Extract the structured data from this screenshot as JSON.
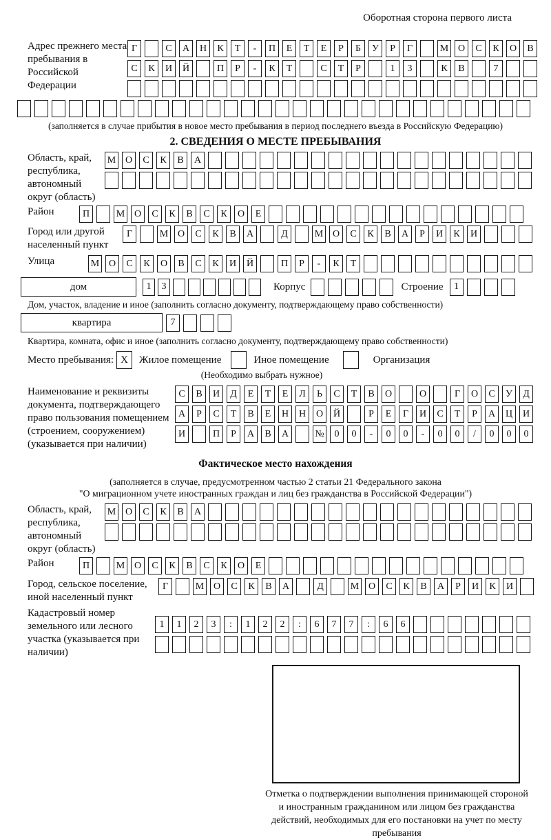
{
  "header_note": "Оборотная сторона первого листа",
  "prev_address": {
    "label": "Адрес прежнего места пребывания в Российской Федерации",
    "row1": {
      "count": 24,
      "value": "Г САНКТ-ПЕТЕРБУРГ МОСКОВ"
    },
    "row2": {
      "count": 24,
      "value": "СКИЙ ПР-КТ СТР 13 КВ 7"
    },
    "row3": {
      "count": 24,
      "value": ""
    },
    "row4": {
      "count": 30,
      "value": ""
    },
    "caption": "(заполняется в случае прибытия в новое место пребывания в период последнего въезда в Российскую Федерацию)"
  },
  "section2": {
    "title": "2. СВЕДЕНИЯ О МЕСТЕ ПРЕБЫВАНИЯ",
    "region": {
      "label": "Область, край, республика, автономный округ (область)",
      "row1": {
        "count": 25,
        "value": "МОСКВА"
      },
      "row2": {
        "count": 25,
        "value": ""
      }
    },
    "district": {
      "label": "Район",
      "row": {
        "count": 26,
        "value": "П МОСКВСКОЕ"
      }
    },
    "city": {
      "label": "Город или другой населенный пункт",
      "row": {
        "count": 24,
        "value": "Г МОСКВА Д МОСКВАРИКИ"
      }
    },
    "street": {
      "label": "Улица",
      "row": {
        "count": 26,
        "value": "МОСКОВСКИЙ ПР-КТ"
      }
    },
    "house": {
      "box_label": "дом",
      "cells": {
        "count": 8,
        "value": "13"
      },
      "korpus_label": "Корпус",
      "korpus_cells": {
        "count": 5,
        "value": ""
      },
      "stroenie_label": "Строение",
      "stroenie_cells": {
        "count": 4,
        "value": "1"
      }
    },
    "house_caption": "Дом, участок, владение и иное (заполнить согласно документу, подтверждающему право собственности)",
    "apartment": {
      "box_label": "квартира",
      "cells": {
        "count": 4,
        "value": "7"
      }
    },
    "apartment_caption": "Квартира, комната, офис и иное (заполнить согласно документу, подтверждающему право собственности)",
    "stay": {
      "label": "Место пребывания:",
      "opt1": {
        "label": "Жилое помещение",
        "mark": "X"
      },
      "opt2": {
        "label": "Иное помещение",
        "mark": ""
      },
      "opt3": {
        "label": "Организация",
        "mark": ""
      },
      "note": "(Необходимо выбрать нужное)"
    },
    "document": {
      "label": "Наименование и реквизиты документа, подтверждающего право пользования помещением (строением, сооружением) (указывается при наличии)",
      "row1": {
        "count": 21,
        "value": "СВИДЕТЕЛЬСТВО О ГОСУД"
      },
      "row2": {
        "count": 21,
        "value": "АРСТВЕННОЙ РЕГИСТРАЦИ"
      },
      "row3": {
        "count": 21,
        "value": "И ПРАВА №00-00-00/000"
      }
    }
  },
  "actual_location": {
    "title": "Фактическое место нахождения",
    "caption1": "(заполняется в случае, предусмотренном частью 2 статьи 21 Федерального закона",
    "caption2": "\"О миграционном учете иностранных граждан и лиц без гражданства в Российской Федерации\")",
    "region": {
      "label": "Область, край, республика, автономный округ (область)",
      "row1": {
        "count": 25,
        "value": "МОСКВА"
      },
      "row2": {
        "count": 25,
        "value": ""
      }
    },
    "district": {
      "label": "Район",
      "row": {
        "count": 26,
        "value": "П МОСКВСКОЕ"
      }
    },
    "city": {
      "label": "Город, сельское поселение, иной населенный пункт",
      "row": {
        "count": 22,
        "value": "Г МОСКВА Д МОСКВАРИКИ"
      }
    },
    "cadastre": {
      "label": "Кадастровый номер земельного или лесного участка (указывается при наличии)",
      "row1": {
        "count": 22,
        "value": "1123:122:677:66"
      },
      "row2": {
        "count": 22,
        "value": ""
      }
    }
  },
  "stamp_caption": "Отметка о подтверждении выполнения принимающей стороной и иностранным гражданином или лицом без гражданства действий, необходимых для его постановки на учет по месту пребывания"
}
